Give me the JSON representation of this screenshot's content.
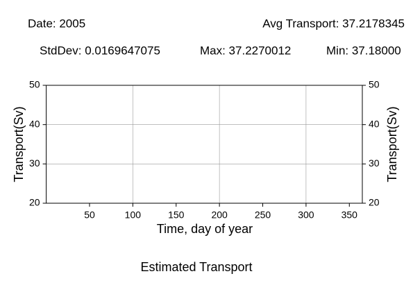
{
  "chart_data": {
    "type": "line",
    "header": [
      "Date: 2005",
      "Avg Transport: 37.2178345",
      "StdDev: 0.0169647075",
      "Max: 37.2270012",
      "Min: 37.18000"
    ],
    "title": "Estimated Transport",
    "x_label": "Time, day of year",
    "y_label": "Transport(Sv)",
    "y2_label": "Transport(Sv)",
    "xlim": [
      0,
      365
    ],
    "xticks": [
      50,
      100,
      150,
      200,
      250,
      300,
      350
    ],
    "xgrid": [
      100,
      200,
      300
    ],
    "ylim": [
      20,
      50
    ],
    "yticks": [
      20,
      30,
      40,
      50
    ],
    "y2lim": [
      20,
      50
    ],
    "y2ticks": [
      20,
      30,
      40,
      50
    ],
    "grid": true,
    "series": []
  }
}
